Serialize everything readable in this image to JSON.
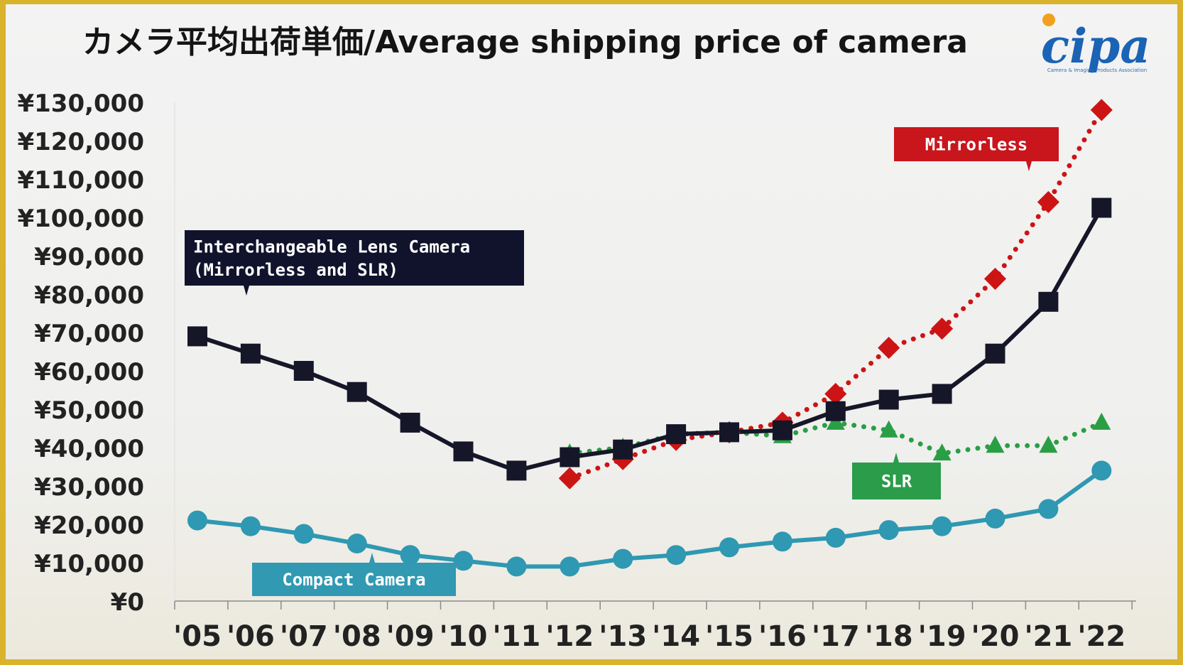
{
  "title": "カメラ平均出荷単価/Average shipping price of camera",
  "logo": {
    "text": "cipa",
    "tagline": "Camera & Imaging Products Association"
  },
  "colors": {
    "ilc": "#161629",
    "mirrorless": "#cc1414",
    "slr": "#2a9e45",
    "compact": "#2f98b2",
    "ilc_box": "#11132c",
    "mirrorless_box": "#c9151c",
    "slr_box": "#2b9c4a",
    "compact_box": "#3199b2"
  },
  "chart_data": {
    "type": "line",
    "categories": [
      "'05",
      "'06",
      "'07",
      "'08",
      "'09",
      "'10",
      "'11",
      "'12",
      "'13",
      "'14",
      "'15",
      "'16",
      "'17",
      "'18",
      "'19",
      "'20",
      "'21",
      "'22"
    ],
    "ylim": [
      0,
      130000
    ],
    "y_ticks": [
      0,
      10000,
      20000,
      30000,
      40000,
      50000,
      60000,
      70000,
      80000,
      90000,
      100000,
      110000,
      120000,
      130000
    ],
    "y_tick_labels": [
      "¥0",
      "¥10,000",
      "¥20,000",
      "¥30,000",
      "¥40,000",
      "¥50,000",
      "¥60,000",
      "¥70,000",
      "¥80,000",
      "¥90,000",
      "¥100,000",
      "¥110,000",
      "¥120,000",
      "¥130,000"
    ],
    "series": [
      {
        "name": "Interchangeable Lens Camera (Mirrorless and SLR)",
        "label_lines": [
          "Interchangeable Lens Camera",
          "(Mirrorless and SLR)"
        ],
        "marker": "square",
        "style": "solid",
        "color_key": "ilc",
        "values": [
          69000,
          64500,
          60000,
          54500,
          46500,
          39000,
          34000,
          37500,
          39500,
          43500,
          44000,
          44500,
          49500,
          52500,
          54000,
          64500,
          78000,
          102500
        ]
      },
      {
        "name": "Mirrorless",
        "label_lines": [
          "Mirrorless"
        ],
        "marker": "diamond",
        "style": "dotted",
        "color_key": "mirrorless",
        "values": [
          null,
          null,
          null,
          null,
          null,
          null,
          null,
          32000,
          37000,
          42000,
          44000,
          46500,
          54000,
          66000,
          71000,
          84000,
          104000,
          128000
        ]
      },
      {
        "name": "SLR",
        "label_lines": [
          "SLR"
        ],
        "marker": "triangle",
        "style": "dotted",
        "color_key": "slr",
        "values": [
          null,
          null,
          null,
          null,
          null,
          null,
          null,
          38500,
          40000,
          43500,
          44000,
          43000,
          46500,
          44500,
          38500,
          40500,
          40500,
          46500
        ]
      },
      {
        "name": "Compact Camera",
        "label_lines": [
          "Compact Camera"
        ],
        "marker": "circle",
        "style": "solid",
        "color_key": "compact",
        "values": [
          21000,
          19500,
          17500,
          15000,
          12000,
          10500,
          9000,
          9000,
          11000,
          12000,
          14000,
          15500,
          16500,
          18500,
          19500,
          21500,
          24000,
          34000
        ]
      }
    ]
  }
}
